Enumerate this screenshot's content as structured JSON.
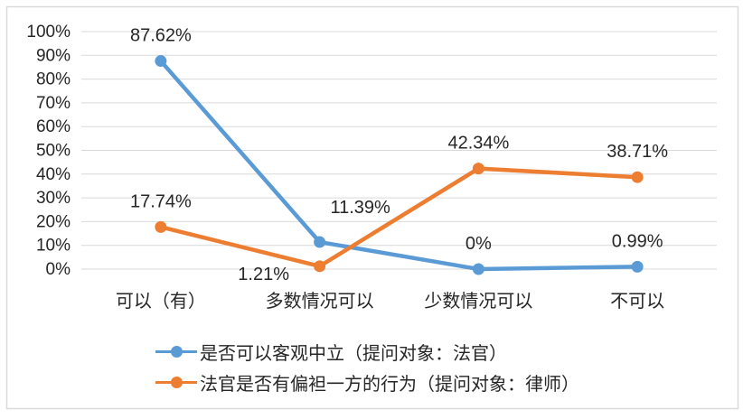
{
  "chart": {
    "background": "#FFFFFF",
    "border_color": "#D9D9D9",
    "gridline_color": "#D9D9D9",
    "text_color": "#262626"
  },
  "chart_data": {
    "type": "line",
    "title": "",
    "categories": [
      "可以（有）",
      "多数情况可以",
      "少数情况可以",
      "不可以"
    ],
    "series": [
      {
        "name": "是否可以客观中立（提问对象：法官）",
        "color": "#5B9BD5",
        "values": [
          87.62,
          11.39,
          0,
          0.99
        ],
        "labels": [
          "87.62%",
          "11.39%",
          "0%",
          "0.99%"
        ],
        "label_positions": [
          "above",
          "above-right",
          "above",
          "above"
        ]
      },
      {
        "name": "法官是否有偏袒一方的行为（提问对象：律师）",
        "color": "#ED7D31",
        "values": [
          17.74,
          1.21,
          42.34,
          38.71
        ],
        "labels": [
          "17.74%",
          "1.21%",
          "42.34%",
          "38.71%"
        ],
        "label_positions": [
          "above",
          "below-left",
          "above",
          "above"
        ]
      }
    ],
    "y_axis": {
      "min": 0,
      "max": 100,
      "step": 10,
      "tick_labels": [
        "0%",
        "10%",
        "20%",
        "30%",
        "40%",
        "50%",
        "60%",
        "70%",
        "80%",
        "90%",
        "100%"
      ]
    },
    "grid": "horizontal",
    "legend_position": "bottom-left"
  }
}
